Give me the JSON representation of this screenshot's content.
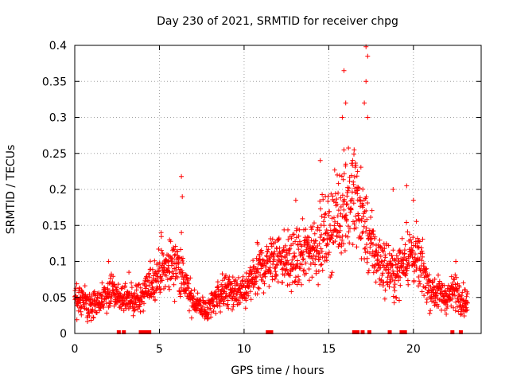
{
  "chart_data": {
    "type": "scatter",
    "title": "Day 230 of 2021, SRMTID for receiver chpg",
    "xlabel": "GPS time / hours",
    "ylabel": "SRMTID / TECUs",
    "xlim": [
      0,
      24
    ],
    "ylim": [
      0,
      0.4
    ],
    "xticks": [
      0,
      5,
      10,
      15,
      20
    ],
    "xtick_labels": [
      "0",
      "5",
      "10",
      "15",
      "20"
    ],
    "yticks": [
      0,
      0.05,
      0.1,
      0.15,
      0.2,
      0.25,
      0.3,
      0.35,
      0.4
    ],
    "ytick_labels": [
      "0",
      "0.05",
      "0.1",
      "0.15",
      "0.2",
      "0.25",
      "0.3",
      "0.35",
      "0.4"
    ],
    "grid": true,
    "marker": "plus",
    "color": "#ff0000",
    "series": [
      {
        "name": "SRMTID",
        "trend": [
          [
            0.0,
            0.05
          ],
          [
            0.5,
            0.045
          ],
          [
            1.0,
            0.04
          ],
          [
            1.5,
            0.042
          ],
          [
            2.0,
            0.06
          ],
          [
            2.5,
            0.052
          ],
          [
            3.0,
            0.045
          ],
          [
            3.5,
            0.048
          ],
          [
            4.0,
            0.05
          ],
          [
            4.5,
            0.07
          ],
          [
            5.0,
            0.085
          ],
          [
            5.5,
            0.09
          ],
          [
            6.0,
            0.1
          ],
          [
            6.3,
            0.085
          ],
          [
            6.8,
            0.05
          ],
          [
            7.3,
            0.04
          ],
          [
            7.8,
            0.03
          ],
          [
            8.3,
            0.05
          ],
          [
            9.0,
            0.06
          ],
          [
            9.5,
            0.055
          ],
          [
            10.0,
            0.055
          ],
          [
            10.5,
            0.075
          ],
          [
            11.0,
            0.09
          ],
          [
            11.5,
            0.1
          ],
          [
            12.0,
            0.11
          ],
          [
            12.5,
            0.1
          ],
          [
            13.0,
            0.1
          ],
          [
            13.5,
            0.11
          ],
          [
            14.0,
            0.12
          ],
          [
            14.5,
            0.13
          ],
          [
            15.0,
            0.14
          ],
          [
            15.5,
            0.16
          ],
          [
            16.0,
            0.18
          ],
          [
            16.5,
            0.19
          ],
          [
            17.0,
            0.16
          ],
          [
            17.5,
            0.12
          ],
          [
            18.0,
            0.1
          ],
          [
            18.5,
            0.09
          ],
          [
            19.0,
            0.08
          ],
          [
            19.5,
            0.11
          ],
          [
            20.0,
            0.11
          ],
          [
            20.5,
            0.09
          ],
          [
            21.0,
            0.06
          ],
          [
            21.5,
            0.055
          ],
          [
            22.0,
            0.05
          ],
          [
            22.5,
            0.06
          ],
          [
            23.0,
            0.045
          ]
        ],
        "spikes": [
          [
            6.3,
            0.218
          ],
          [
            6.35,
            0.19
          ],
          [
            6.3,
            0.14
          ],
          [
            13.05,
            0.185
          ],
          [
            15.9,
            0.365
          ],
          [
            16.0,
            0.32
          ],
          [
            15.8,
            0.3
          ],
          [
            15.9,
            0.255
          ],
          [
            16.5,
            0.255
          ],
          [
            16.7,
            0.225
          ],
          [
            17.2,
            0.398
          ],
          [
            17.3,
            0.385
          ],
          [
            17.2,
            0.35
          ],
          [
            17.1,
            0.32
          ],
          [
            17.3,
            0.3
          ],
          [
            16.0,
            0.235
          ],
          [
            19.6,
            0.205
          ],
          [
            18.8,
            0.2
          ],
          [
            5.1,
            0.14
          ],
          [
            5.6,
            0.13
          ],
          [
            2.0,
            0.1
          ],
          [
            3.2,
            0.085
          ],
          [
            22.5,
            0.1
          ],
          [
            20.0,
            0.185
          ],
          [
            14.5,
            0.24
          ],
          [
            15.5,
            0.22
          ]
        ]
      }
    ],
    "gap_markers_x": [
      2.6,
      2.9,
      3.9,
      4.1,
      4.3,
      4.4,
      11.4,
      11.6,
      16.5,
      16.7,
      17.0,
      17.4,
      18.6,
      19.3,
      19.5,
      22.3,
      22.8
    ]
  }
}
